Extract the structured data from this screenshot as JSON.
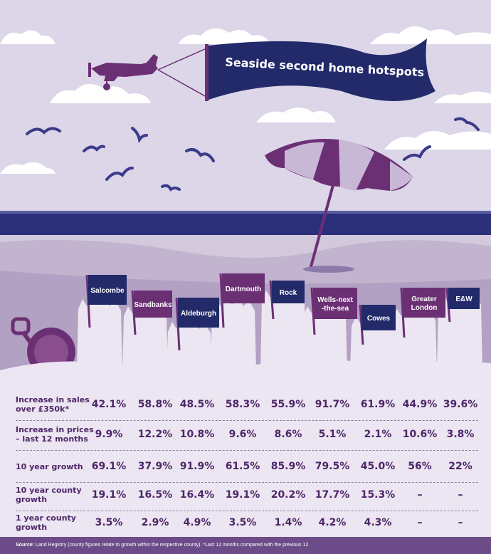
{
  "title": "Seaside second home hotspots",
  "colors": {
    "sky": "#dcd6e8",
    "sea": "#2b2f7a",
    "purple": "#6b2f74",
    "navy": "#222a6a",
    "sand": "#cfc4d9",
    "text": "#4e2668"
  },
  "flags": [
    {
      "name": "Salcombe",
      "color": "navy"
    },
    {
      "name": "Sandbanks",
      "color": "purple"
    },
    {
      "name": "Aldeburgh",
      "color": "navy"
    },
    {
      "name": "Dartmouth",
      "color": "purple"
    },
    {
      "name": "Rock",
      "color": "navy"
    },
    {
      "name_line1": "Wells-next",
      "name_line2": "-the-sea",
      "color": "purple"
    },
    {
      "name": "Cowes",
      "color": "navy"
    },
    {
      "name_line1": "Greater",
      "name_line2": "London",
      "color": "purple"
    },
    {
      "name": "E&W",
      "color": "navy"
    }
  ],
  "rows": [
    {
      "label_line1": "Increase in sales",
      "label_line2": "over £350k*",
      "values": [
        "42.1%",
        "58.8%",
        "48.5%",
        "58.3%",
        "55.9%",
        "91.7%",
        "61.9%",
        "44.9%",
        "39.6%"
      ]
    },
    {
      "label_line1": "Increase in prices",
      "label_line2": "– last 12 months",
      "values": [
        "9.9%",
        "12.2%",
        "10.8%",
        "9.6%",
        "8.6%",
        "5.1%",
        "2.1%",
        "10.6%",
        "3.8%"
      ]
    },
    {
      "label_line1": "10 year growth",
      "label_line2": "",
      "values": [
        "69.1%",
        "37.9%",
        "91.9%",
        "61.5%",
        "85.9%",
        "79.5%",
        "45.0%",
        "56%",
        "22%"
      ]
    },
    {
      "label_line1": "10 year county",
      "label_line2": "growth",
      "values": [
        "19.1%",
        "16.5%",
        "16.4%",
        "19.1%",
        "20.2%",
        "17.7%",
        "15.3%",
        "–",
        "–"
      ]
    },
    {
      "label_line1": "1 year county",
      "label_line2": "growth",
      "values": [
        "3.5%",
        "2.9%",
        "4.9%",
        "3.5%",
        "1.4%",
        "4.2%",
        "4.3%",
        "–",
        "–"
      ]
    }
  ],
  "footer": {
    "source_label": "Source:",
    "source_text": "Land Registry (county figures relate to growth within the respective county). *Last 12 months compared with the previous 12"
  }
}
